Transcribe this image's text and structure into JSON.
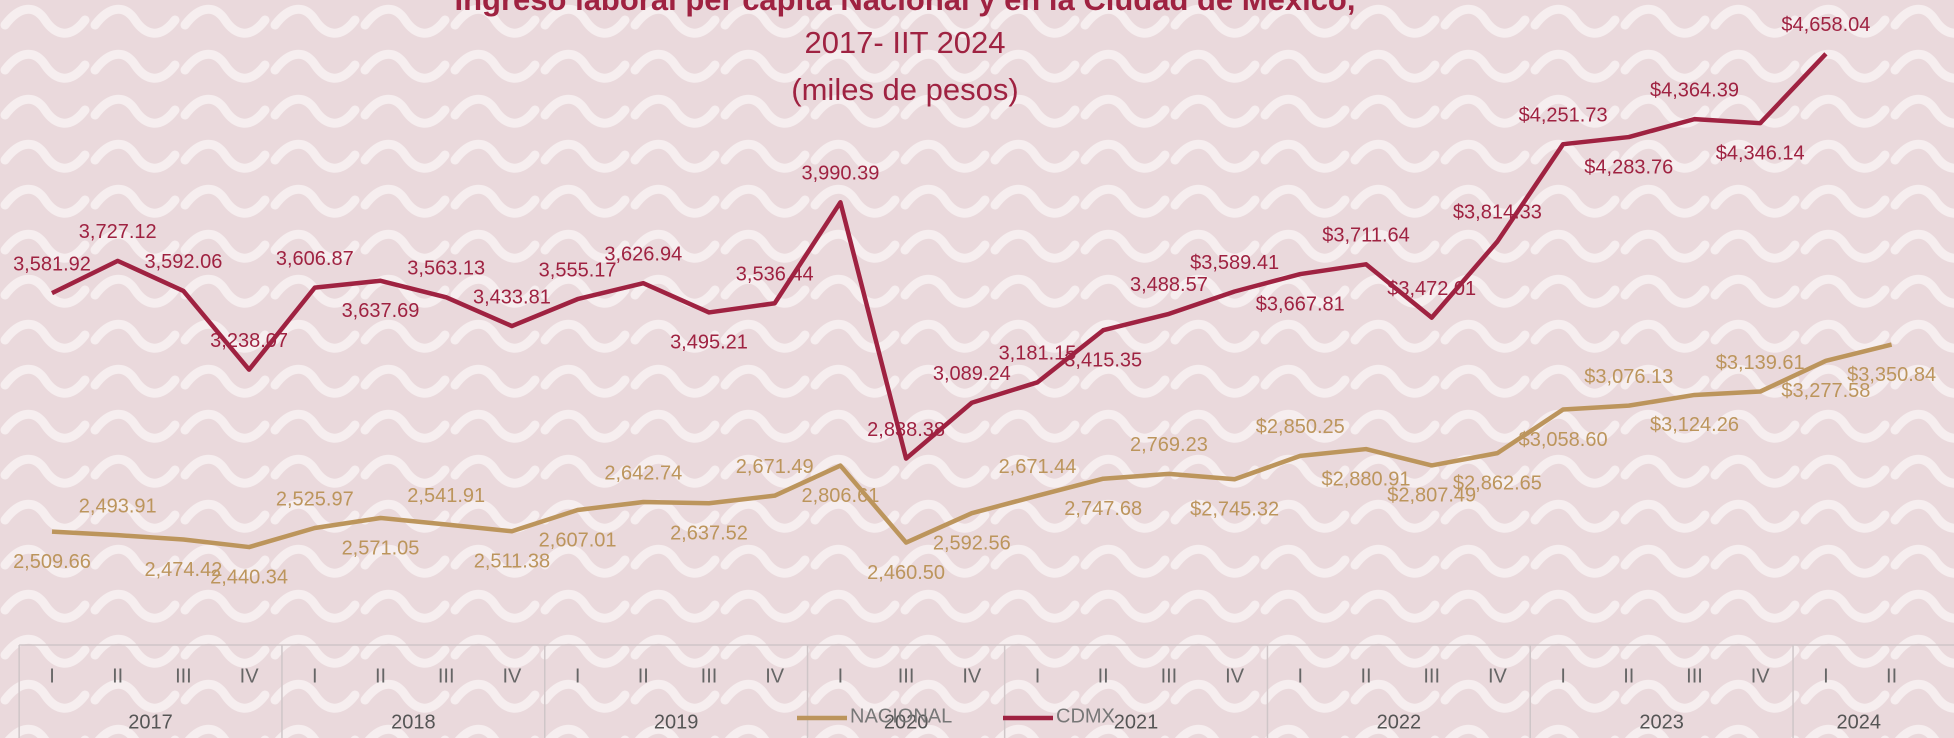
{
  "chart_data": {
    "type": "line",
    "title": "Ingreso laboral per cápita Nacional y en la Ciudad de México,",
    "subtitle": "2017- IIT 2024",
    "unit_note": "(miles de pesos)",
    "categories": [
      "I",
      "II",
      "III",
      "IV",
      "I",
      "II",
      "III",
      "IV",
      "I",
      "II",
      "III",
      "IV",
      "I",
      "III",
      "IV",
      "I",
      "II",
      "III",
      "IV",
      "I",
      "II",
      "III",
      "IV",
      "I",
      "II",
      "III",
      "IV",
      "I",
      "II"
    ],
    "years": [
      "2017",
      "2018",
      "2019",
      "2020",
      "2021",
      "2022",
      "2023",
      "2024"
    ],
    "ylim": [
      2000,
      4900
    ],
    "series": [
      {
        "name": "NACIONAL",
        "color": "#bc955c",
        "values": [
          2509.66,
          2493.91,
          2474.42,
          2440.34,
          2525.97,
          2571.05,
          2541.91,
          2511.38,
          2607.01,
          2642.74,
          2637.52,
          2671.49,
          2806.61,
          2460.5,
          2592.56,
          2671.44,
          2747.68,
          2769.23,
          2745.32,
          2850.25,
          2880.91,
          2807.49,
          2862.65,
          3058.6,
          3076.13,
          3124.26,
          3139.61,
          3277.58,
          3350.84
        ],
        "value_labels": [
          "2,509.66",
          "2,493.91",
          "2,474.42",
          "2,440.34",
          "2,525.97",
          "2,571.05",
          "2,541.91",
          "2,511.38",
          "2,607.01",
          "2,642.74",
          "2,637.52",
          "2,671.49",
          "2,806.61",
          "2,460.50",
          "2,592.56",
          "2,671.44",
          "2,747.68",
          "2,769.23",
          "$2,745.32",
          "$2,850.25",
          "$2,880.91",
          "$2,807.49",
          "$2,862.65",
          "$3,058.60",
          "$3,076.13",
          "$3,124.26",
          "$3,139.61",
          "$3,277.58",
          "$3,350.84"
        ]
      },
      {
        "name": "CDMX",
        "color": "#9f2241",
        "values": [
          3581.92,
          3727.12,
          3592.06,
          3238.07,
          3606.87,
          3637.69,
          3563.13,
          3433.81,
          3555.17,
          3626.94,
          3495.21,
          3536.44,
          3990.39,
          2838.38,
          3089.24,
          3181.15,
          3415.35,
          3488.57,
          3589.41,
          3667.81,
          3711.64,
          3472.01,
          3814.33,
          4251.73,
          4283.76,
          4364.39,
          4346.14,
          4658.04,
          null
        ],
        "value_labels": [
          "3,581.92",
          "3,727.12",
          "3,592.06",
          "3,238.07",
          "3,606.87",
          "3,637.69",
          "3,563.13",
          "3,433.81",
          "3,555.17",
          "3,626.94",
          "3,495.21",
          "3,536.44",
          "3,990.39",
          "2,838.38",
          "3,089.24",
          "3,181.15",
          "3,415.35",
          "3,488.57",
          "$3,589.41",
          "$3,667.81",
          "$3,711.64",
          "$3,472.01",
          "$3,814.33",
          "$4,251.73",
          "$4,283.76",
          "$4,364.39",
          "$4,346.14",
          "$4,658.04",
          null
        ]
      }
    ],
    "legend": "bottom"
  }
}
